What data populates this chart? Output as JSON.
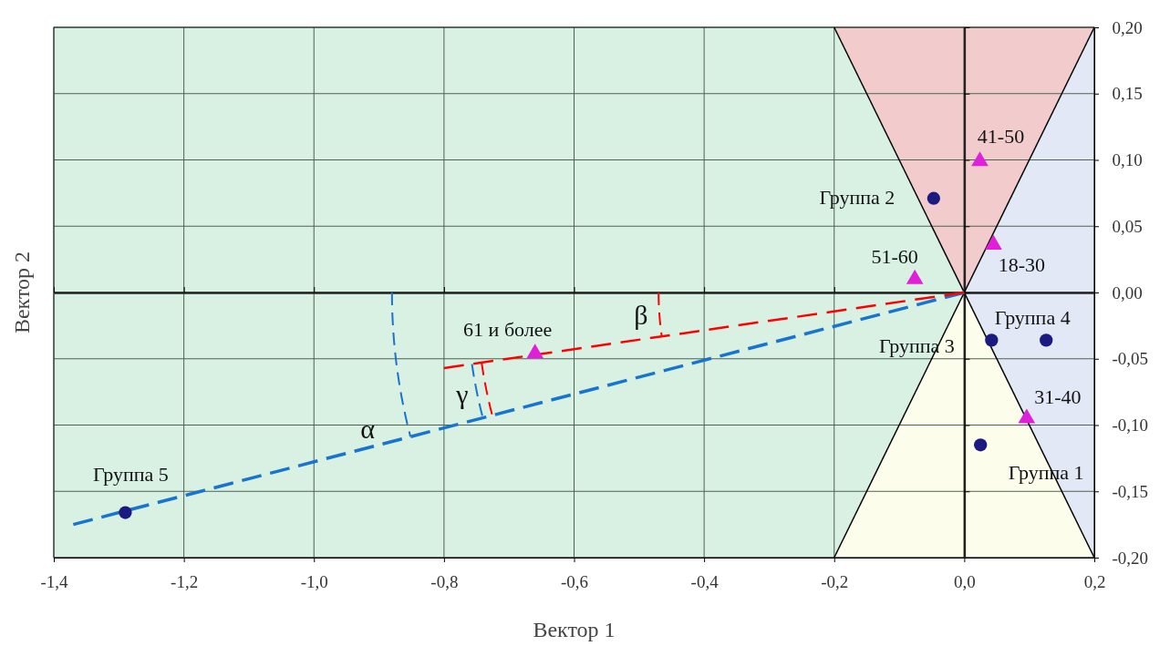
{
  "chart_data": {
    "type": "scatter",
    "xlabel": "Вектор 1",
    "ylabel": "Вектор 2",
    "xlim": [
      -1.4,
      0.2
    ],
    "ylim": [
      -0.2,
      0.2
    ],
    "xticks": [
      {
        "value": -1.4,
        "label": "-1,4"
      },
      {
        "value": -1.2,
        "label": "-1,2"
      },
      {
        "value": -1.0,
        "label": "-1,0"
      },
      {
        "value": -0.8,
        "label": "-0,8"
      },
      {
        "value": -0.6,
        "label": "-0,6"
      },
      {
        "value": -0.4,
        "label": "-0,4"
      },
      {
        "value": -0.2,
        "label": "-0,2"
      },
      {
        "value": 0,
        "label": "0,0"
      },
      {
        "value": 0.2,
        "label": "0,2"
      }
    ],
    "yticks": [
      {
        "value": -0.2,
        "label": "-0,20"
      },
      {
        "value": -0.15,
        "label": "-0,15"
      },
      {
        "value": -0.1,
        "label": "-0,10"
      },
      {
        "value": -0.05,
        "label": "-0,05"
      },
      {
        "value": 0,
        "label": "0,00"
      },
      {
        "value": 0.05,
        "label": "0,05"
      },
      {
        "value": 0.1,
        "label": "0,10"
      },
      {
        "value": 0.15,
        "label": "0,15"
      },
      {
        "value": 0.2,
        "label": "0,20"
      }
    ],
    "grid": true,
    "series": [
      {
        "type": "line",
        "line_style": "solid",
        "color": "#000000",
        "x": [
          -0.2,
          0.2
        ],
        "values": [
          0.2,
          -0.2
        ]
      },
      {
        "type": "line",
        "line_style": "solid",
        "color": "#000000",
        "x": [
          -0.2,
          0.2
        ],
        "values": [
          -0.2,
          0.2
        ]
      },
      {
        "type": "line",
        "line_style": "dashed",
        "color": "#1874cd",
        "x": [
          0,
          -1.37
        ],
        "values": [
          0,
          -0.175
        ]
      },
      {
        "type": "line",
        "line_style": "dashed",
        "color": "#ff0000",
        "x": [
          0,
          -0.8
        ],
        "values": [
          0,
          -0.057
        ]
      },
      {
        "marker": "circle",
        "color": "#1a1a80",
        "x": [
          -1.29,
          -0.047,
          0.042,
          0.126,
          0.025
        ],
        "values": [
          -0.166,
          0.071,
          -0.036,
          -0.036,
          -0.115
        ]
      },
      {
        "marker": "triangle",
        "color": "#e020d8",
        "x": [
          -0.66,
          -0.076,
          0.024,
          0.045,
          0.096
        ],
        "values": [
          -0.046,
          0.01,
          0.099,
          0.036,
          -0.095
        ]
      }
    ],
    "annotations": [
      {
        "text": "Группа 5",
        "x": -1.29,
        "y": -0.166
      },
      {
        "text": "61 и более",
        "x": -0.66,
        "y": -0.046
      },
      {
        "text": "51-60",
        "x": -0.076,
        "y": 0.01
      },
      {
        "text": "Группа 2",
        "x": -0.047,
        "y": 0.071
      },
      {
        "text": "41-50",
        "x": 0.024,
        "y": 0.099
      },
      {
        "text": "18-30",
        "x": 0.045,
        "y": 0.036
      },
      {
        "text": "Группа 3",
        "x": 0.042,
        "y": -0.036
      },
      {
        "text": "Группа 4",
        "x": 0.126,
        "y": -0.036
      },
      {
        "text": "31-40",
        "x": 0.096,
        "y": -0.095
      },
      {
        "text": "Группа 1",
        "x": 0.025,
        "y": -0.115
      },
      "α",
      "β",
      "γ"
    ]
  }
}
